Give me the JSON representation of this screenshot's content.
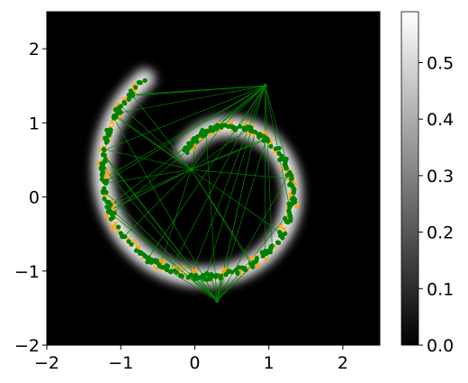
{
  "chart_data": {
    "type": "scatter",
    "description_of_marks": "heatmap background with sampled points (green dots), proposal points (orange crosses) and green connecting segments",
    "xlim": [
      -2,
      2.5
    ],
    "ylim": [
      -2,
      2.5
    ],
    "x_ticks": [
      "−2",
      "−1",
      "0",
      "1",
      "2"
    ],
    "x_tick_values": [
      -2,
      -1,
      0,
      1,
      2
    ],
    "y_ticks": [
      "−2",
      "−1",
      "0",
      "1",
      "2"
    ],
    "y_tick_values": [
      -2,
      -1,
      0,
      1,
      2
    ],
    "colorbar": {
      "min": 0.0,
      "max": 0.59,
      "ticks": [
        "0.0",
        "0.1",
        "0.2",
        "0.3",
        "0.4",
        "0.5"
      ],
      "tick_values": [
        0.0,
        0.1,
        0.2,
        0.3,
        0.4,
        0.5
      ],
      "colormap": "gray"
    },
    "density": {
      "shape": "spiral band",
      "center": [
        0.3,
        0.2
      ],
      "radius_start": 0.6,
      "radius_end": 1.7,
      "theta_start_deg": 135,
      "theta_end_deg": -235,
      "band_width": 0.13,
      "peak": 0.59
    },
    "series": [],
    "colors": {
      "sample_points": "#008000",
      "proposal_points": "#ffa500",
      "links": "#008000",
      "background": "#000000"
    },
    "grid": false,
    "legend": "none"
  }
}
